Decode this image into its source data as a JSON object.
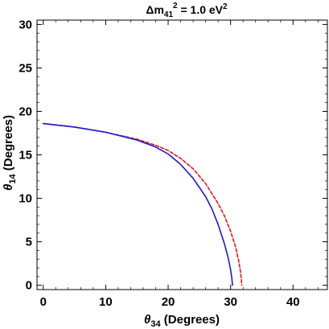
{
  "chart_data": {
    "type": "line",
    "title": {
      "symbol": "Δm",
      "subscript": "41",
      "superscript": "2",
      "rest": " = 1.0 eV",
      "rest_superscript": "2"
    },
    "xlabel": {
      "symbol": "θ",
      "subscript": "34",
      "rest": " (Degrees)"
    },
    "ylabel": {
      "symbol": "θ",
      "subscript": "14",
      "rest": " (Degrees)"
    },
    "xlim": [
      -1,
      45.5
    ],
    "ylim": [
      -0.5,
      30.5
    ],
    "xticks": [
      0,
      10,
      20,
      30,
      40
    ],
    "yticks": [
      0,
      5,
      10,
      15,
      20,
      25,
      30
    ],
    "grid": false,
    "series": [
      {
        "style": "solid",
        "color": "#1a1adc",
        "points": [
          [
            0,
            18.6
          ],
          [
            5,
            18.2
          ],
          [
            10,
            17.6
          ],
          [
            15,
            16.7
          ],
          [
            18,
            15.9
          ],
          [
            20,
            15.1
          ],
          [
            22,
            13.9
          ],
          [
            24,
            12.3
          ],
          [
            26,
            10.2
          ],
          [
            27,
            8.8
          ],
          [
            28,
            7.0
          ],
          [
            29,
            4.8
          ],
          [
            29.6,
            3.2
          ],
          [
            30.0,
            1.8
          ],
          [
            30.2,
            0.8
          ],
          [
            30.3,
            0.0
          ]
        ]
      },
      {
        "style": "dashed",
        "color": "#e01818",
        "points": [
          [
            0,
            18.6
          ],
          [
            5,
            18.2
          ],
          [
            10,
            17.6
          ],
          [
            15,
            16.8
          ],
          [
            18,
            16.1
          ],
          [
            20,
            15.5
          ],
          [
            22,
            14.6
          ],
          [
            24,
            13.4
          ],
          [
            26,
            11.7
          ],
          [
            28,
            9.4
          ],
          [
            29,
            8.0
          ],
          [
            30,
            6.2
          ],
          [
            30.8,
            4.4
          ],
          [
            31.3,
            2.8
          ],
          [
            31.6,
            1.5
          ],
          [
            31.8,
            0.0
          ]
        ]
      }
    ]
  }
}
